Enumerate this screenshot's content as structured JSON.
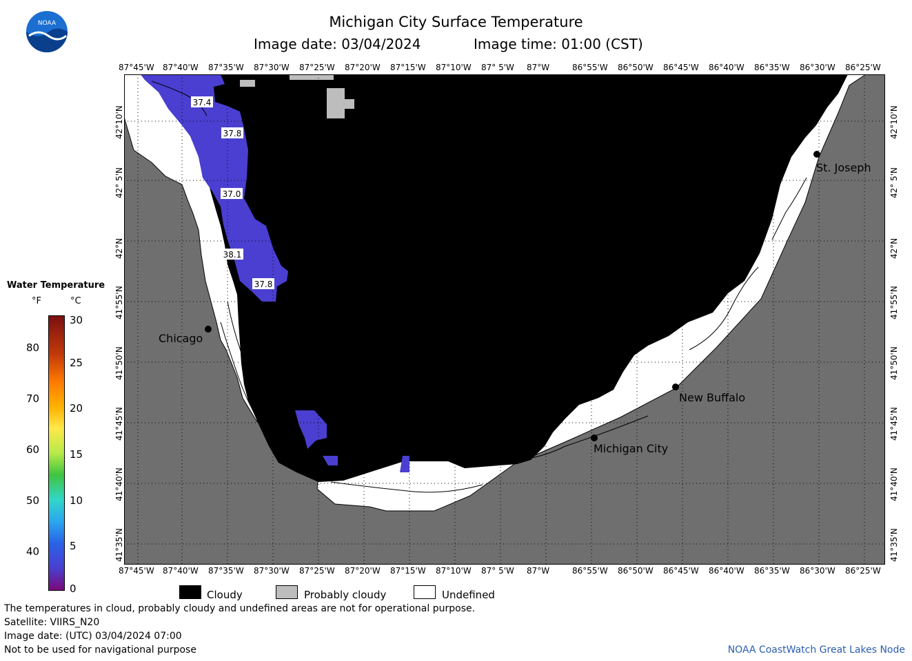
{
  "header": {
    "title": "Michigan City Surface Temperature",
    "image_date": "Image date: 03/04/2024",
    "image_time": "Image time: 01:00 (CST)",
    "logo_text": "NOAA"
  },
  "map": {
    "lon_labels": [
      "87°45'W",
      "87°40'W",
      "87°35'W",
      "87°30'W",
      "87°25'W",
      "87°20'W",
      "87°15'W",
      "87°10'W",
      "87° 5'W",
      "87°W",
      "86°55'W",
      "86°50'W",
      "86°45'W",
      "86°40'W",
      "86°35'W",
      "86°30'W",
      "86°25'W"
    ],
    "lat_labels": [
      "42°10'N",
      "42° 5'N",
      "42°N",
      "41°55'N",
      "41°50'N",
      "41°45'N",
      "41°40'N",
      "41°35'N"
    ],
    "cities": [
      {
        "name": "Chicago"
      },
      {
        "name": "St. Joseph"
      },
      {
        "name": "New Buffalo"
      },
      {
        "name": "Michigan City"
      }
    ],
    "temperature_labels": [
      "37.4",
      "37.8",
      "37.0",
      "38.1",
      "37.8"
    ],
    "colors": {
      "land": "#6f6f6f",
      "cloudy": "#000000",
      "probably_cloudy": "#bdbdbd",
      "undefined": "#ffffff",
      "water_temp": "#4a3fd0"
    }
  },
  "colorbar": {
    "title": "Water Temperature",
    "unit_f": "°F",
    "unit_c": "°C",
    "f_ticks": [
      "80",
      "70",
      "60",
      "50",
      "40"
    ],
    "c_ticks": [
      "30",
      "25",
      "20",
      "15",
      "10",
      "5",
      "0"
    ]
  },
  "legend": {
    "cloudy": "Cloudy",
    "probably_cloudy": "Probably cloudy",
    "undefined": "Undefined"
  },
  "footer": {
    "line1": "The temperatures in cloud, probably cloudy and undefined areas are not for operational purpose.",
    "line2": "Satellite: VIIRS_N20",
    "line3": "Image date: (UTC) 03/04/2024  07:00",
    "line4": "Not to be used for navigational purpose",
    "credit": "NOAA CoastWatch Great Lakes Node"
  }
}
